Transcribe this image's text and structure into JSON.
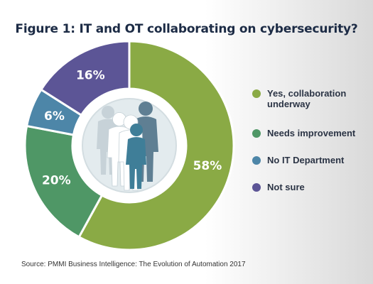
{
  "title": "Figure 1: IT and OT collaborating on cybersecurity?",
  "source": "Source: PMMI Business Intelligence: The Evolution of Automation 2017",
  "center_icon": "people-group-icon",
  "chart_data": {
    "type": "pie",
    "title": "Figure 1: IT and OT collaborating on cybersecurity?",
    "donut": true,
    "legend_placement": "right",
    "slices": [
      {
        "label": "Yes, collaboration underway",
        "value": 58,
        "display": "58%",
        "color": "#8aaa45"
      },
      {
        "label": "Needs improvement",
        "value": 20,
        "display": "20%",
        "color": "#4f9766"
      },
      {
        "label": "No IT Department",
        "value": 6,
        "display": "6%",
        "color": "#4d86a8"
      },
      {
        "label": "Not sure",
        "value": 16,
        "display": "16%",
        "color": "#5c5596"
      }
    ]
  }
}
